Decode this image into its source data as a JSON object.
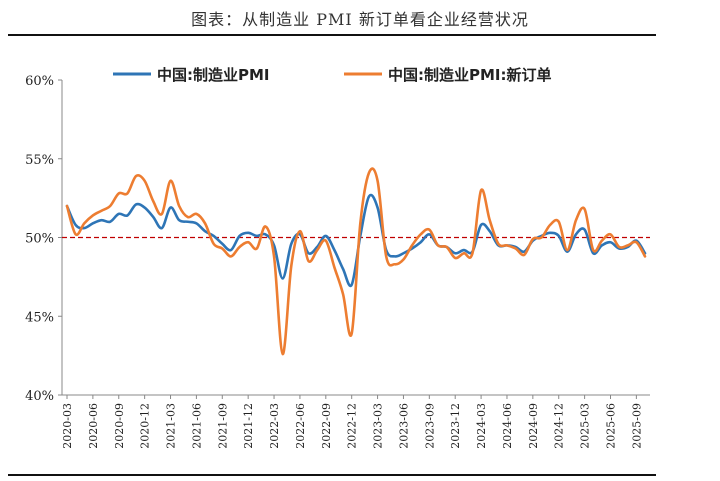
{
  "figure": {
    "title": "图表：从制造业 PMI 新订单看企业经营状况"
  },
  "colors": {
    "pmi": "#2E75B6",
    "new_orders": "#ED7D31",
    "reference": "#C00000",
    "axis": "#888888"
  },
  "chart_data": {
    "type": "line",
    "title": "图表：从制造业 PMI 新订单看企业经营状况",
    "xlabel": "",
    "ylabel": "",
    "ylim": [
      40,
      60
    ],
    "yticks": [
      40,
      45,
      50,
      55,
      60
    ],
    "ytick_labels": [
      "40%",
      "45%",
      "50%",
      "55%",
      "60%"
    ],
    "reference_line": {
      "value": 50,
      "style": "dashed"
    },
    "legend": {
      "placement": "top",
      "entries": [
        "中国:制造业PMI",
        "中国:制造业PMI:新订单"
      ]
    },
    "x_tick_labels": [
      "2020-03",
      "2020-06",
      "2020-09",
      "2020-12",
      "2021-03",
      "2021-06",
      "2021-09",
      "2021-12",
      "2022-03",
      "2022-06",
      "2022-09",
      "2022-12",
      "2023-03",
      "2023-06",
      "2023-09",
      "2023-12",
      "2024-03",
      "2024-06",
      "2024-09",
      "2024-12",
      "2025-03",
      "2025-06",
      "2025-09"
    ],
    "x": [
      "2020-03",
      "2020-04",
      "2020-05",
      "2020-06",
      "2020-07",
      "2020-08",
      "2020-09",
      "2020-10",
      "2020-11",
      "2020-12",
      "2021-01",
      "2021-02",
      "2021-03",
      "2021-04",
      "2021-05",
      "2021-06",
      "2021-07",
      "2021-08",
      "2021-09",
      "2021-10",
      "2021-11",
      "2021-12",
      "2022-01",
      "2022-02",
      "2022-03",
      "2022-04",
      "2022-05",
      "2022-06",
      "2022-07",
      "2022-08",
      "2022-09",
      "2022-10",
      "2022-11",
      "2022-12",
      "2023-01",
      "2023-02",
      "2023-03",
      "2023-04",
      "2023-05",
      "2023-06",
      "2023-07",
      "2023-08",
      "2023-09",
      "2023-10",
      "2023-11",
      "2023-12",
      "2024-01",
      "2024-02",
      "2024-03",
      "2024-04",
      "2024-05",
      "2024-06",
      "2024-07",
      "2024-08",
      "2024-09",
      "2024-10",
      "2024-11",
      "2024-12",
      "2025-01",
      "2025-02",
      "2025-03",
      "2025-04",
      "2025-05",
      "2025-06",
      "2025-07",
      "2025-08",
      "2025-09",
      "2025-10"
    ],
    "series": [
      {
        "name": "中国:制造业PMI",
        "color": "#2E75B6",
        "values": [
          52.0,
          50.8,
          50.6,
          50.9,
          51.1,
          51.0,
          51.5,
          51.4,
          52.1,
          51.9,
          51.3,
          50.6,
          51.9,
          51.1,
          51.0,
          50.9,
          50.4,
          50.1,
          49.6,
          49.2,
          50.1,
          50.3,
          50.1,
          50.2,
          49.5,
          47.4,
          49.6,
          50.2,
          49.0,
          49.4,
          50.1,
          49.2,
          48.0,
          47.0,
          50.1,
          52.6,
          51.9,
          49.2,
          48.8,
          49.0,
          49.3,
          49.7,
          50.2,
          49.5,
          49.4,
          49.0,
          49.2,
          49.1,
          50.8,
          50.4,
          49.5,
          49.5,
          49.4,
          49.1,
          49.8,
          50.1,
          50.3,
          50.1,
          49.1,
          50.2,
          50.5,
          49.0,
          49.5,
          49.7,
          49.3,
          49.4,
          49.8,
          49.0
        ]
      },
      {
        "name": "中国:制造业PMI:新订单",
        "color": "#ED7D31",
        "values": [
          52.0,
          50.2,
          50.9,
          51.4,
          51.7,
          52.0,
          52.8,
          52.8,
          53.9,
          53.6,
          52.3,
          51.5,
          53.6,
          52.0,
          51.3,
          51.5,
          50.9,
          49.6,
          49.3,
          48.8,
          49.4,
          49.7,
          49.3,
          50.7,
          48.8,
          42.6,
          48.2,
          50.4,
          48.5,
          49.2,
          49.8,
          48.1,
          46.4,
          43.9,
          50.9,
          54.1,
          53.6,
          48.8,
          48.3,
          48.6,
          49.5,
          50.2,
          50.5,
          49.5,
          49.4,
          48.7,
          49.0,
          49.0,
          53.0,
          51.1,
          49.6,
          49.5,
          49.3,
          48.9,
          49.9,
          50.0,
          50.8,
          51.0,
          49.2,
          51.1,
          51.8,
          49.2,
          49.8,
          50.2,
          49.4,
          49.5,
          49.7,
          48.8
        ]
      }
    ]
  }
}
